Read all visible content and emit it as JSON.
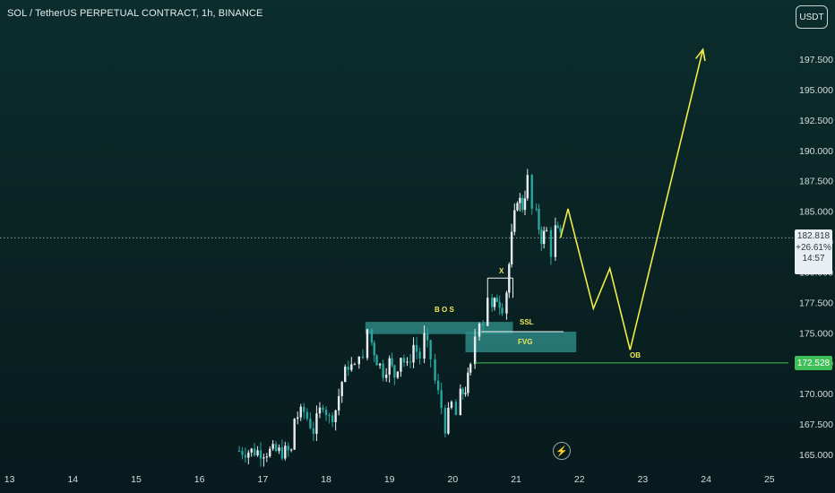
{
  "header": {
    "title": "SOL / TetherUS PERPETUAL CONTRACT, 1h, BINANCE",
    "currency_button": "USDT"
  },
  "current_price": {
    "price": "182.818",
    "change": "+26.61%",
    "countdown": "14:57",
    "value": 182.818
  },
  "level_tag": {
    "label": "172.528",
    "value": 172.528,
    "color": "#3fbf58"
  },
  "annotations": {
    "bos": "B O S",
    "x": "X",
    "ssl": "SSL",
    "fvg": "FVG",
    "ob": "OB"
  },
  "icons": {
    "lightning": "lightning-icon"
  },
  "colors": {
    "bull": "#e8eef0",
    "bear": "#2aa6a0",
    "projection": "#f0ec48",
    "zone": "#2f8e8a",
    "level_line": "#3fbf58"
  },
  "chart_data": {
    "type": "candlestick",
    "title": "SOL / TetherUS PERPETUAL CONTRACT, 1h, BINANCE",
    "x_ticks": [
      "13",
      "14",
      "15",
      "16",
      "17",
      "18",
      "19",
      "20",
      "21",
      "22",
      "23",
      "24",
      "25"
    ],
    "y_ticks": [
      "165.000",
      "167.500",
      "170.000",
      "172.500",
      "175.000",
      "177.500",
      "180.000",
      "182.500",
      "185.000",
      "187.500",
      "190.000",
      "192.500",
      "195.000",
      "197.500"
    ],
    "ylim": [
      164,
      200
    ],
    "xlim": [
      12.85,
      25.3
    ],
    "series": [
      {
        "name": "",
        "type": "close-path",
        "points": [
          [
            16.58,
            165.3
          ],
          [
            17.45,
            165.2
          ],
          [
            17.5,
            168.0
          ],
          [
            17.65,
            168.5
          ],
          [
            17.8,
            167.0
          ],
          [
            17.95,
            169.3
          ],
          [
            18.05,
            167.9
          ],
          [
            18.15,
            168.7
          ],
          [
            18.25,
            171.0
          ],
          [
            18.35,
            172.4
          ],
          [
            18.45,
            172.0
          ],
          [
            18.52,
            173.6
          ],
          [
            18.58,
            172.5
          ],
          [
            18.65,
            175.3
          ],
          [
            18.72,
            174.2
          ],
          [
            18.8,
            172.8
          ],
          [
            18.9,
            171.8
          ],
          [
            19.0,
            172.6
          ],
          [
            19.08,
            171.5
          ],
          [
            19.18,
            173.2
          ],
          [
            19.28,
            172.1
          ],
          [
            19.38,
            174.0
          ],
          [
            19.48,
            173.0
          ],
          [
            19.55,
            174.6
          ],
          [
            19.65,
            172.9
          ],
          [
            19.72,
            171.0
          ],
          [
            19.82,
            168.9
          ],
          [
            19.88,
            167.3
          ],
          [
            19.98,
            169.1
          ],
          [
            20.05,
            168.2
          ],
          [
            20.12,
            169.8
          ],
          [
            20.2,
            170.4
          ],
          [
            20.28,
            172.0
          ],
          [
            20.35,
            174.8
          ],
          [
            20.42,
            176.3
          ],
          [
            20.48,
            175.9
          ],
          [
            20.55,
            178.1
          ],
          [
            20.62,
            176.8
          ],
          [
            20.7,
            177.9
          ],
          [
            20.78,
            177.2
          ],
          [
            20.85,
            178.5
          ],
          [
            20.93,
            182.8
          ],
          [
            21.02,
            186.2
          ],
          [
            21.1,
            185.4
          ],
          [
            21.18,
            187.6
          ],
          [
            21.25,
            185.1
          ],
          [
            21.32,
            184.6
          ],
          [
            21.4,
            182.8
          ],
          [
            21.48,
            183.3
          ],
          [
            21.55,
            181.7
          ],
          [
            21.62,
            183.5
          ],
          [
            21.7,
            182.8
          ]
        ]
      }
    ],
    "projection": {
      "name": "",
      "points": [
        [
          21.7,
          182.8
        ],
        [
          21.82,
          185.2
        ],
        [
          22.22,
          177.0
        ],
        [
          22.48,
          180.3
        ],
        [
          22.8,
          173.6
        ],
        [
          23.95,
          198.3
        ]
      ]
    },
    "zones": [
      {
        "label": "B O S",
        "x": [
          18.62,
          20.95
        ],
        "y": [
          174.9,
          175.9
        ]
      },
      {
        "label": "FVG",
        "x": [
          20.2,
          21.95
        ],
        "y": [
          173.4,
          175.1
        ]
      }
    ],
    "lines": [
      {
        "label": "SSL",
        "x": [
          20.45,
          21.75
        ],
        "y": 175.1
      },
      {
        "label": "",
        "x": [
          20.35,
          25.3
        ],
        "y": 172.528
      },
      {
        "label": "X",
        "x": [
          20.55,
          20.95
        ],
        "y": 179.5
      }
    ],
    "current_price": 182.818,
    "grid": false,
    "legend": "none"
  }
}
